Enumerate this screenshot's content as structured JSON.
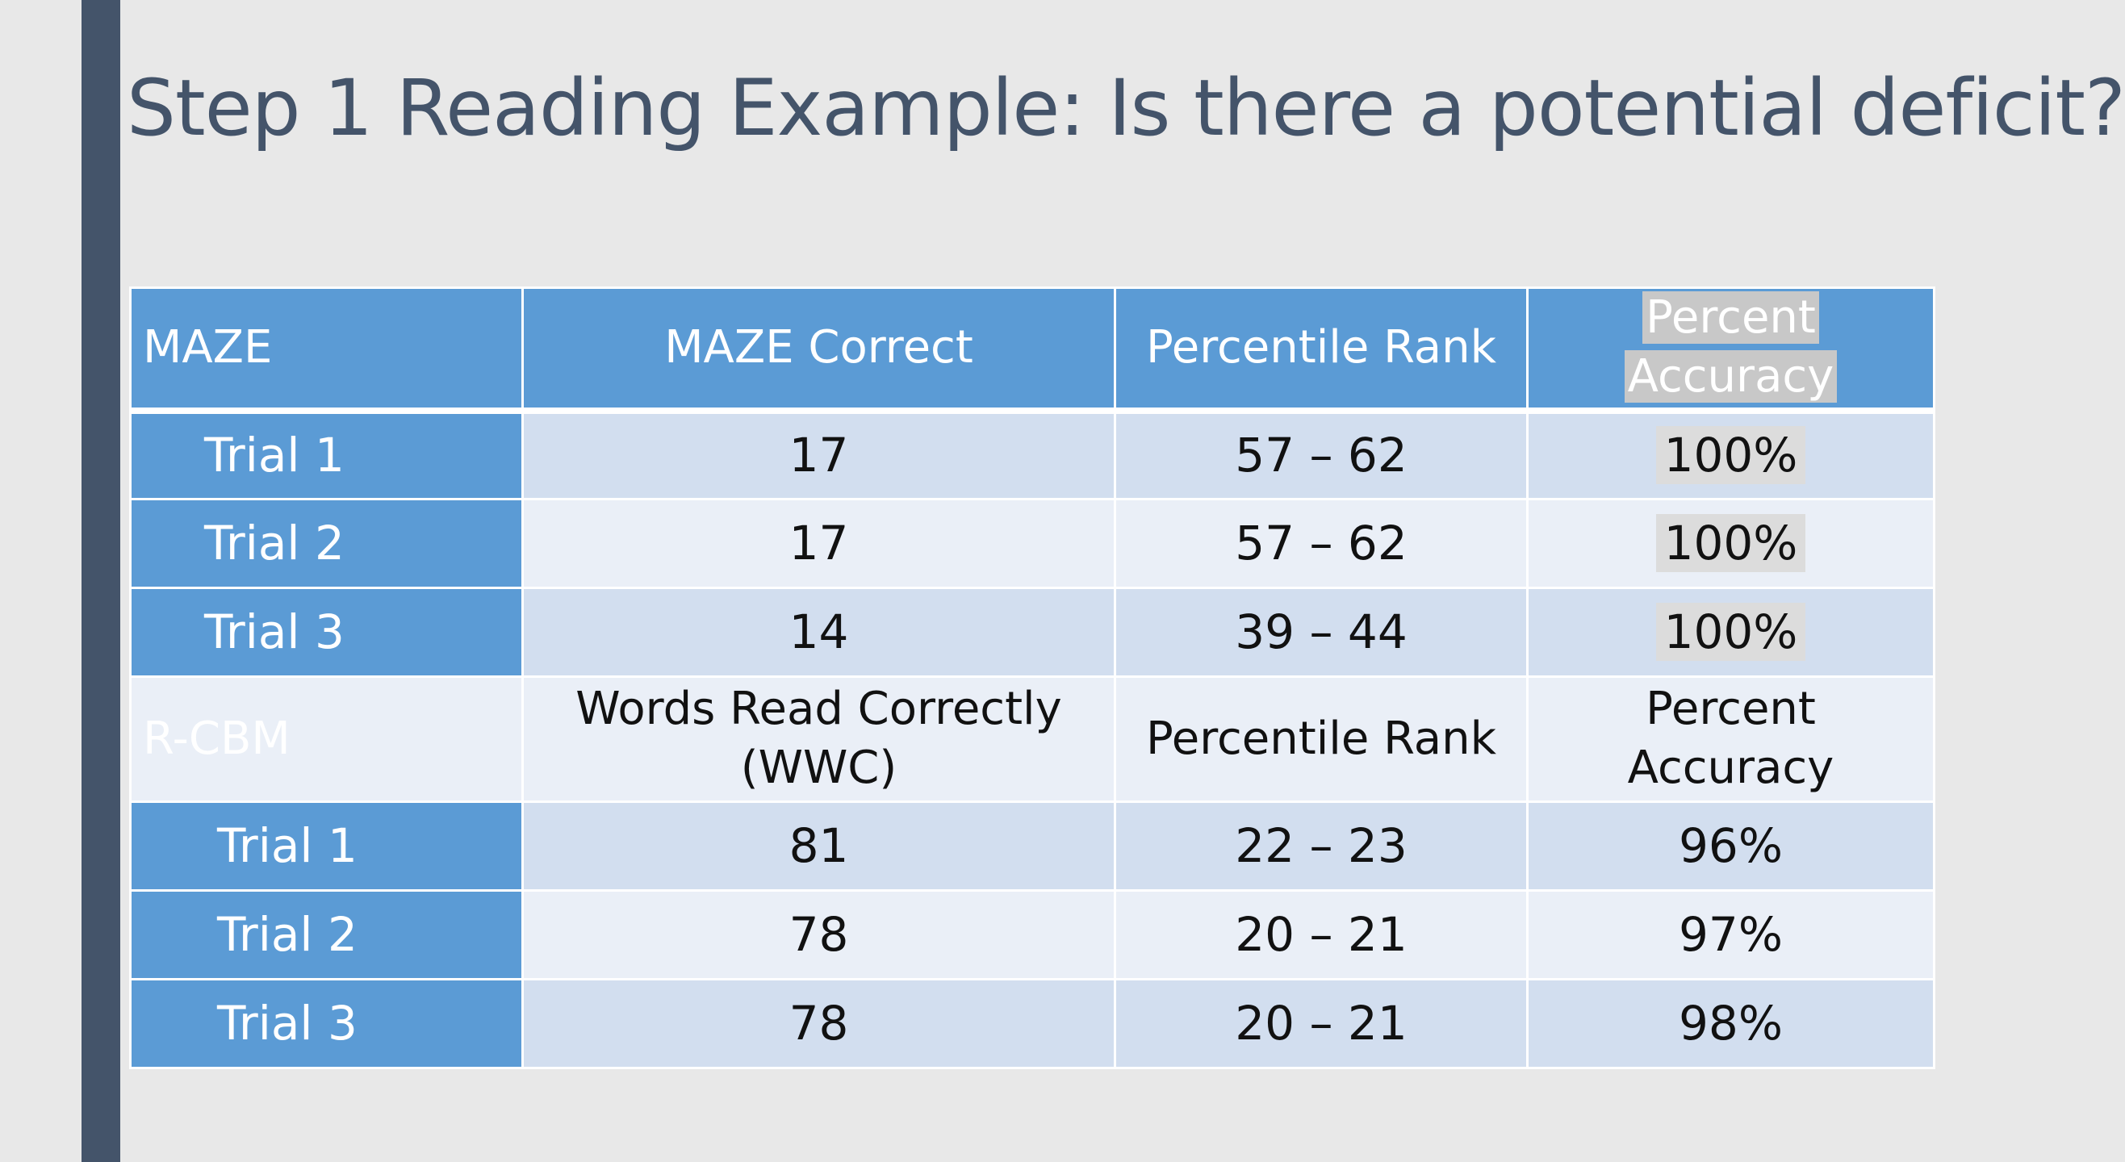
{
  "slide": {
    "title": "Step 1 Reading Example: Is there a potential deficit?"
  },
  "colors": {
    "header_blue": "#5b9bd5",
    "band_dark": "#d2deef",
    "band_light": "#eaeff7",
    "title_color": "#44546a",
    "accent_bar": "#44546a"
  },
  "table": {
    "maze_header": {
      "label": "MAZE",
      "col2": "MAZE Correct",
      "col3": "Percentile Rank",
      "col4_line1": "Percent",
      "col4_line2": "Accuracy"
    },
    "maze_rows": [
      {
        "label": "Trial 1",
        "correct": "17",
        "percentile": "57 – 62",
        "accuracy": "100%"
      },
      {
        "label": "Trial 2",
        "correct": "17",
        "percentile": "57 – 62",
        "accuracy": "100%"
      },
      {
        "label": "Trial 3",
        "correct": "14",
        "percentile": "39 – 44",
        "accuracy": "100%"
      }
    ],
    "rcbm_header": {
      "label": "R-CBM",
      "col2_line1": "Words Read Correctly",
      "col2_line2": "(WWC)",
      "col3": "Percentile Rank",
      "col4": "Percent Accuracy"
    },
    "rcbm_rows": [
      {
        "label": "Trial 1",
        "correct": "81",
        "percentile": "22 – 23",
        "accuracy": "96%"
      },
      {
        "label": "Trial 2",
        "correct": "78",
        "percentile": "20 – 21",
        "accuracy": "97%"
      },
      {
        "label": "Trial 3",
        "correct": "78",
        "percentile": "20 – 21",
        "accuracy": "98%"
      }
    ]
  }
}
